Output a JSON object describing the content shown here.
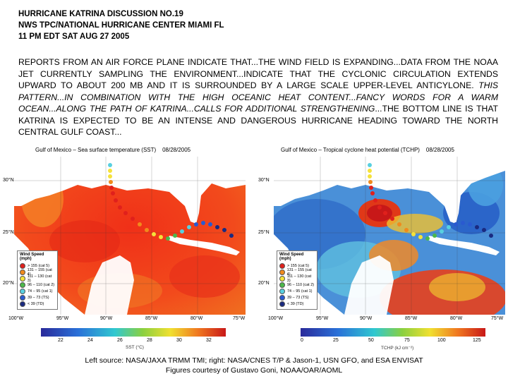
{
  "header": {
    "line1": "HURRICANE KATRINA DISCUSSION NO.19",
    "line2": "NWS TPC/NATIONAL HURRICANE CENTER MIAMI FL",
    "line3": "11 PM EDT SAT AUG 27 2005"
  },
  "discussion": {
    "part1": "REPORTS FROM AN AIR FORCE PLANE INDICATE THAT...THE WIND FIELD IS EXPANDING...DATA FROM THE NOAA JET CURRENTLY SAMPLING THE ENVIRONMENT...INDICATE THAT THE CYCLONIC CIRCULATION EXTENDS UPWARD TO ABOUT 200 MB AND IT IS SURROUNDED BY A LARGE SCALE UPPER-LEVEL ANTICYLONE.",
    "part2_italic": "THIS PATTERN...IN COMBINATION WITH THE HIGH OCEANIC HEAT CONTENT...FANCY WORDS FOR A WARM OCEAN...ALONG THE PATH OF KATRINA...CALLS FOR ADDITIONAL STRENGTHENING",
    "part3": "...THE BOTTOM LINE IS THAT KATRINA IS EXPECTED TO BE AN INTENSE AND DANGEROUS HURRICANE HEADING TOWARD THE NORTH CENTRAL GULF COAST..."
  },
  "left_map": {
    "title": "Gulf of Mexico – Sea surface temperature (SST)",
    "date": "08/28/2005",
    "cbar_ticks": [
      "22",
      "24",
      "26",
      "28",
      "30",
      "32"
    ],
    "cbar_label": "SST (°C)",
    "legend_title": "Wind Speed (mph)"
  },
  "right_map": {
    "title": "Gulf of Mexico – Tropical cyclone heat potential (TCHP)",
    "date": "08/28/2005",
    "cbar_ticks": [
      "0",
      "25",
      "50",
      "75",
      "100",
      "125"
    ],
    "cbar_label": "TCHP (kJ cm⁻²)",
    "legend_title": "Wind Speed (mph)"
  },
  "lat_labels": [
    "30°N",
    "25°N",
    "20°N"
  ],
  "lon_labels": [
    "100°W",
    "95°W",
    "90°W",
    "85°W",
    "80°W",
    "75°W"
  ],
  "legend_items": [
    {
      "label": "> 155 (cat 5)",
      "color": "#e0201c"
    },
    {
      "label": "131 – 155 (cat 4)",
      "color": "#f08a1c"
    },
    {
      "label": "111 – 130 (cat 3)",
      "color": "#f5e23a"
    },
    {
      "label": "96 – 110 (cat 2)",
      "color": "#4cb84c"
    },
    {
      "label": "74 – 95 (cat 1)",
      "color": "#58d0e0"
    },
    {
      "label": "39 – 73 (TS)",
      "color": "#2a5ad0"
    },
    {
      "label": "< 39 (TD)",
      "color": "#1a2a80"
    }
  ],
  "credit": {
    "line1": "Left source: NASA/JAXA TRMM TMI;  right: NASA/CNES T/P & Jason-1, USN GFO, and ESA ENVISAT",
    "line2": "Figures courtesy of Gustavo Goni, NOAA/OAR/AOML"
  }
}
